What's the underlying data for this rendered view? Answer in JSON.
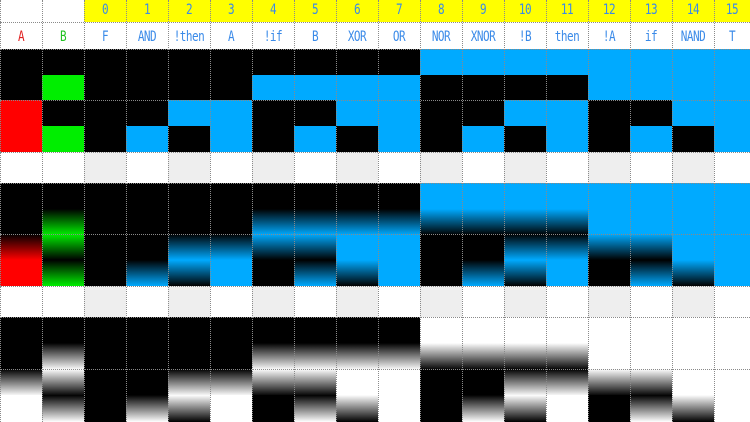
{
  "header": {
    "input_labels": [
      "A",
      "B"
    ],
    "functions": [
      {
        "index": "0",
        "name": "F"
      },
      {
        "index": "1",
        "name": "AND"
      },
      {
        "index": "2",
        "name": "!then"
      },
      {
        "index": "3",
        "name": "A"
      },
      {
        "index": "4",
        "name": "!if"
      },
      {
        "index": "5",
        "name": "B"
      },
      {
        "index": "6",
        "name": "XOR"
      },
      {
        "index": "7",
        "name": "OR"
      },
      {
        "index": "8",
        "name": "NOR"
      },
      {
        "index": "9",
        "name": "XNOR"
      },
      {
        "index": "10",
        "name": "!B"
      },
      {
        "index": "11",
        "name": "then"
      },
      {
        "index": "12",
        "name": "!A"
      },
      {
        "index": "13",
        "name": "if"
      },
      {
        "index": "14",
        "name": "NAND"
      },
      {
        "index": "15",
        "name": "T"
      }
    ]
  },
  "colors": {
    "background": "#ffffff",
    "index_band": "#ffff00",
    "index_text": "#3a8ae8",
    "op_text": "#3a8ae8",
    "input_a": "#ff0000",
    "input_b": "#00ee00",
    "output_true": "#00aaff",
    "output_false": "#000000",
    "gap_row": "#eeeeee"
  },
  "input_rows": [
    {
      "a": 0,
      "b": 0
    },
    {
      "a": 0,
      "b": 1
    },
    {
      "a": 1,
      "b": 0
    },
    {
      "a": 1,
      "b": 1
    }
  ]
}
